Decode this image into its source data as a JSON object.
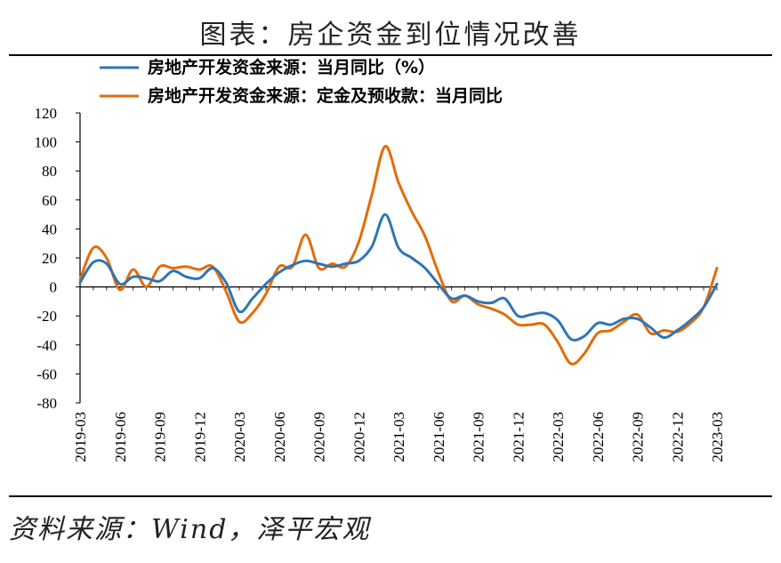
{
  "header": {
    "title": "图表：房企资金到位情况改善"
  },
  "footer": {
    "source": "资料来源：Wind，泽平宏观"
  },
  "colors": {
    "series1": "#2e75b6",
    "series2": "#e36c09",
    "axis": "#000000"
  },
  "chart_data": {
    "type": "line",
    "title": "",
    "xlabel": "",
    "ylabel": "",
    "ylim": [
      -80,
      120
    ],
    "yticks": [
      "120",
      "100",
      "80",
      "60",
      "40",
      "20",
      "0",
      "-20",
      "-40",
      "-60",
      "-80"
    ],
    "xticks": [
      "2019-03",
      "2019-06",
      "2019-09",
      "2019-12",
      "2020-03",
      "2020-06",
      "2020-09",
      "2020-12",
      "2021-03",
      "2021-06",
      "2021-09",
      "2021-12",
      "2022-03",
      "2022-06",
      "2022-09",
      "2022-12",
      "2023-03"
    ],
    "legend_position": "top-left",
    "grid": false,
    "series": [
      {
        "name": "房地产开发资金来源：当月同比（%）",
        "color": "#2e75b6",
        "x": [
          "2019-03",
          "2019-04",
          "2019-05",
          "2019-06",
          "2019-07",
          "2019-08",
          "2019-09",
          "2019-10",
          "2019-11",
          "2019-12",
          "2020-01",
          "2020-02",
          "2020-03",
          "2020-04",
          "2020-05",
          "2020-06",
          "2020-07",
          "2020-08",
          "2020-09",
          "2020-10",
          "2020-11",
          "2020-12",
          "2021-01",
          "2021-02",
          "2021-03",
          "2021-04",
          "2021-05",
          "2021-06",
          "2021-07",
          "2021-08",
          "2021-09",
          "2021-10",
          "2021-11",
          "2021-12",
          "2022-01",
          "2022-02",
          "2022-03",
          "2022-04",
          "2022-05",
          "2022-06",
          "2022-07",
          "2022-08",
          "2022-09",
          "2022-10",
          "2022-11",
          "2022-12",
          "2023-01",
          "2023-02",
          "2023-03"
        ],
        "values": [
          3,
          17,
          16,
          2,
          7,
          6,
          4,
          11,
          7,
          6,
          13,
          3,
          -17,
          -8,
          2,
          10,
          15,
          18,
          16,
          14,
          16,
          18,
          28,
          50,
          27,
          20,
          13,
          2,
          -8,
          -6,
          -10,
          -11,
          -8,
          -20,
          -19,
          -18,
          -23,
          -36,
          -34,
          -25,
          -26,
          -22,
          -22,
          -28,
          -35,
          -30,
          -23,
          -14,
          2
        ]
      },
      {
        "name": "房地产开发资金来源：定金及预收款：当月同比",
        "color": "#e36c09",
        "x": [
          "2019-03",
          "2019-04",
          "2019-05",
          "2019-06",
          "2019-07",
          "2019-08",
          "2019-09",
          "2019-10",
          "2019-11",
          "2019-12",
          "2020-01",
          "2020-02",
          "2020-03",
          "2020-04",
          "2020-05",
          "2020-06",
          "2020-07",
          "2020-08",
          "2020-09",
          "2020-10",
          "2020-11",
          "2020-12",
          "2021-01",
          "2021-02",
          "2021-03",
          "2021-04",
          "2021-05",
          "2021-06",
          "2021-07",
          "2021-08",
          "2021-09",
          "2021-10",
          "2021-11",
          "2021-12",
          "2022-01",
          "2022-02",
          "2022-03",
          "2022-04",
          "2022-05",
          "2022-06",
          "2022-07",
          "2022-08",
          "2022-09",
          "2022-10",
          "2022-11",
          "2022-12",
          "2023-01",
          "2023-02",
          "2023-03"
        ],
        "values": [
          5,
          27,
          20,
          -2,
          12,
          0,
          14,
          13,
          14,
          12,
          14,
          -3,
          -24,
          -18,
          -5,
          14,
          14,
          36,
          13,
          16,
          14,
          31,
          64,
          97,
          72,
          52,
          35,
          10,
          -10,
          -6,
          -12,
          -15,
          -19,
          -26,
          -26,
          -26,
          -38,
          -53,
          -46,
          -32,
          -30,
          -24,
          -19,
          -32,
          -30,
          -31,
          -25,
          -14,
          13
        ]
      }
    ]
  }
}
